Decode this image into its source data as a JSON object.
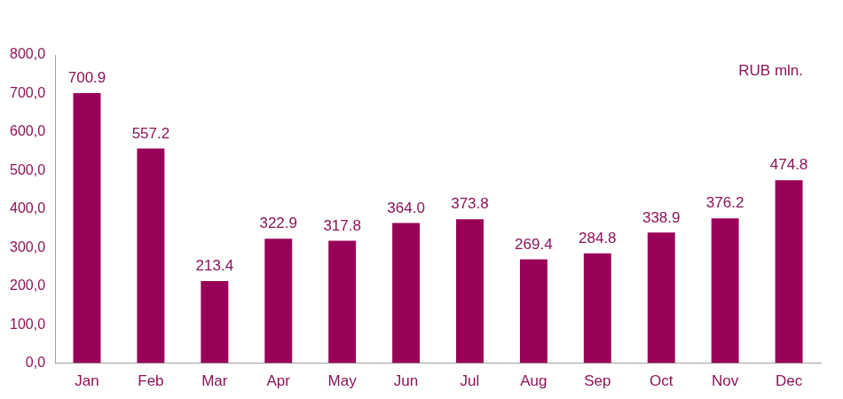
{
  "chart_data": {
    "type": "bar",
    "annotation": "RUB mln.",
    "categories": [
      "Jan",
      "Feb",
      "Mar",
      "Apr",
      "May",
      "Jun",
      "Jul",
      "Aug",
      "Sep",
      "Oct",
      "Nov",
      "Dec"
    ],
    "values": [
      700.9,
      557.2,
      213.4,
      322.9,
      317.8,
      364.0,
      373.8,
      269.4,
      284.8,
      338.9,
      376.2,
      474.8
    ],
    "value_labels": [
      "700.9",
      "557.2",
      "213.4",
      "322.9",
      "317.8",
      "364.0",
      "373.8",
      "269.4",
      "284.8",
      "338.9",
      "376.2",
      "474.8"
    ],
    "color": "#990057",
    "ylim": [
      0,
      800
    ],
    "yticks": [
      {
        "value": 0,
        "label": "0,0"
      },
      {
        "value": 100,
        "label": "100,0"
      },
      {
        "value": 200,
        "label": "200,0"
      },
      {
        "value": 300,
        "label": "300,0"
      },
      {
        "value": 400,
        "label": "400,0"
      },
      {
        "value": 500,
        "label": "500,0"
      },
      {
        "value": 600,
        "label": "600,0"
      },
      {
        "value": 700,
        "label": "700,0"
      },
      {
        "value": 800,
        "label": "800,0"
      }
    ],
    "grid": false,
    "data_labels": true
  }
}
